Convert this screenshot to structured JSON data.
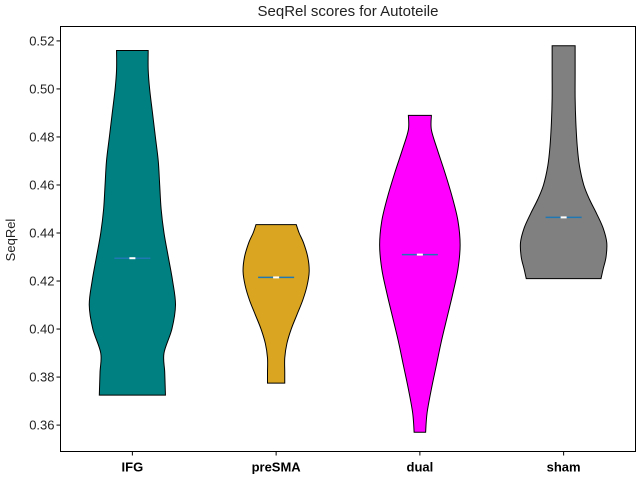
{
  "chart_data": {
    "type": "violin",
    "title": "SeqRel scores for Autoteile",
    "xlabel": "",
    "ylabel": "SeqRel",
    "ylim": [
      0.349,
      0.526
    ],
    "yticks": [
      0.36,
      0.38,
      0.4,
      0.42,
      0.44,
      0.46,
      0.48,
      0.5,
      0.52
    ],
    "ytick_labels": [
      "0.36",
      "0.38",
      "0.40",
      "0.42",
      "0.44",
      "0.46",
      "0.48",
      "0.50",
      "0.52"
    ],
    "grid": false,
    "categories": [
      "IFG",
      "preSMA",
      "dual",
      "sham"
    ],
    "series": [
      {
        "category": "IFG",
        "color": "#008080",
        "min": 0.3725,
        "max": 0.516,
        "median": 0.4295,
        "profile": [
          [
            0.3725,
            0.46
          ],
          [
            0.382,
            0.45
          ],
          [
            0.39,
            0.44
          ],
          [
            0.4,
            0.55
          ],
          [
            0.41,
            0.6
          ],
          [
            0.42,
            0.56
          ],
          [
            0.43,
            0.5
          ],
          [
            0.44,
            0.44
          ],
          [
            0.45,
            0.4
          ],
          [
            0.46,
            0.38
          ],
          [
            0.47,
            0.36
          ],
          [
            0.48,
            0.32
          ],
          [
            0.49,
            0.28
          ],
          [
            0.5,
            0.24
          ],
          [
            0.508,
            0.22
          ],
          [
            0.516,
            0.22
          ]
        ]
      },
      {
        "category": "preSMA",
        "color": "#DAA520",
        "min": 0.3775,
        "max": 0.4435,
        "median": 0.4215,
        "profile": [
          [
            0.3775,
            0.12
          ],
          [
            0.382,
            0.12
          ],
          [
            0.388,
            0.12
          ],
          [
            0.394,
            0.15
          ],
          [
            0.4,
            0.21
          ],
          [
            0.406,
            0.29
          ],
          [
            0.412,
            0.37
          ],
          [
            0.418,
            0.43
          ],
          [
            0.424,
            0.46
          ],
          [
            0.43,
            0.44
          ],
          [
            0.436,
            0.38
          ],
          [
            0.44,
            0.32
          ],
          [
            0.4435,
            0.28
          ]
        ]
      },
      {
        "category": "dual",
        "color": "#FF00FF",
        "min": 0.357,
        "max": 0.489,
        "median": 0.431,
        "profile": [
          [
            0.357,
            0.08
          ],
          [
            0.365,
            0.1
          ],
          [
            0.375,
            0.16
          ],
          [
            0.385,
            0.23
          ],
          [
            0.395,
            0.3
          ],
          [
            0.405,
            0.38
          ],
          [
            0.415,
            0.46
          ],
          [
            0.425,
            0.53
          ],
          [
            0.435,
            0.56
          ],
          [
            0.445,
            0.53
          ],
          [
            0.455,
            0.45
          ],
          [
            0.465,
            0.35
          ],
          [
            0.475,
            0.24
          ],
          [
            0.483,
            0.16
          ],
          [
            0.489,
            0.16
          ]
        ]
      },
      {
        "category": "sham",
        "color": "#808080",
        "min": 0.421,
        "max": 0.518,
        "median": 0.4465,
        "profile": [
          [
            0.421,
            0.52
          ],
          [
            0.425,
            0.55
          ],
          [
            0.43,
            0.59
          ],
          [
            0.436,
            0.6
          ],
          [
            0.442,
            0.55
          ],
          [
            0.448,
            0.46
          ],
          [
            0.454,
            0.36
          ],
          [
            0.46,
            0.28
          ],
          [
            0.468,
            0.22
          ],
          [
            0.476,
            0.19
          ],
          [
            0.486,
            0.17
          ],
          [
            0.496,
            0.16
          ],
          [
            0.506,
            0.16
          ],
          [
            0.514,
            0.16
          ],
          [
            0.518,
            0.16
          ]
        ]
      }
    ]
  }
}
